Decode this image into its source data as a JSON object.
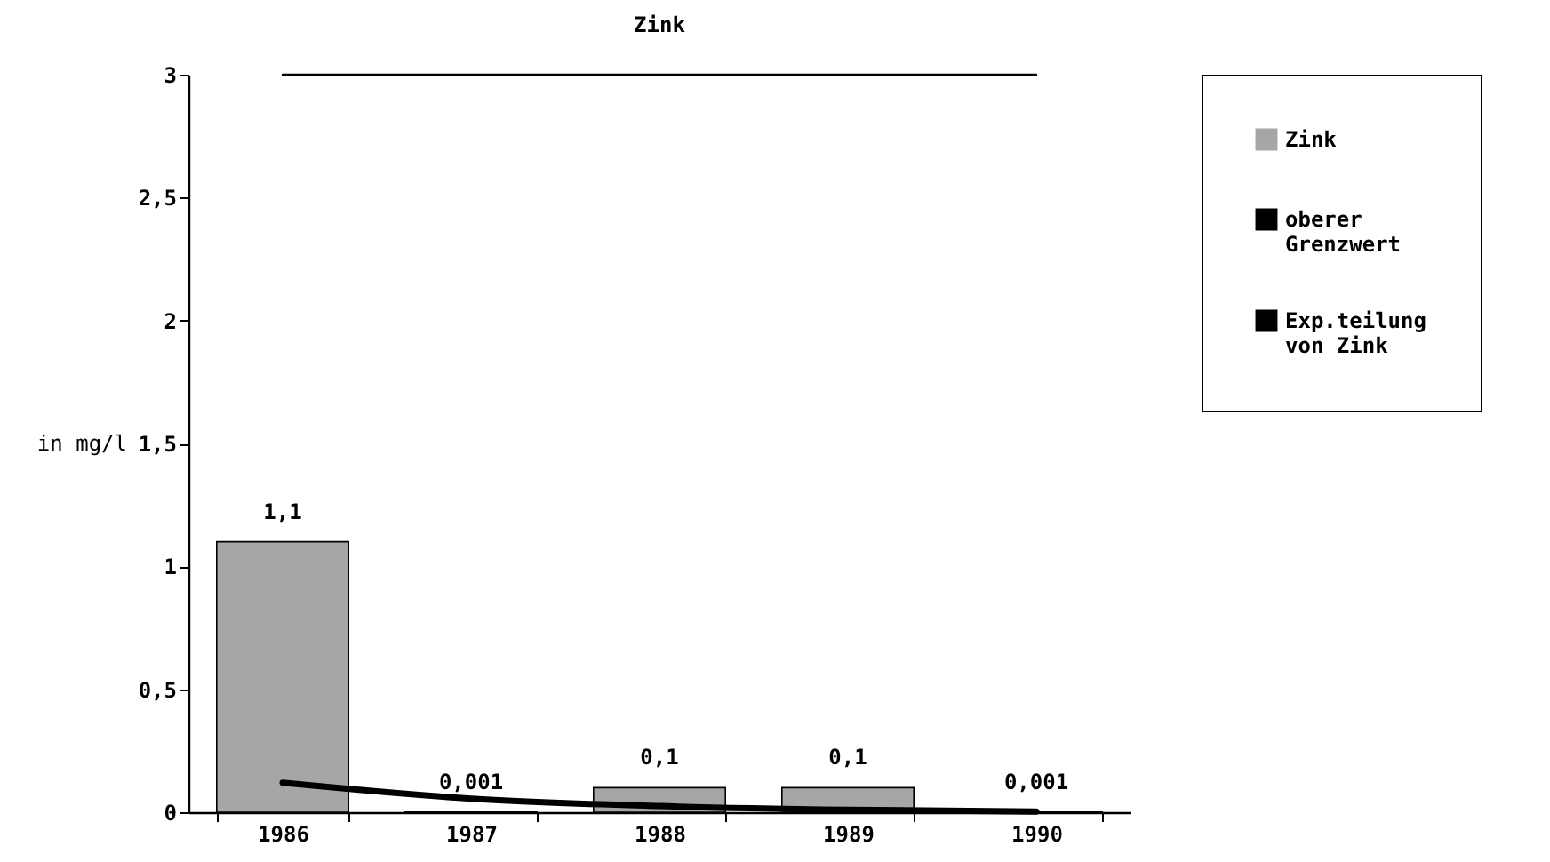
{
  "chart_data": {
    "type": "bar",
    "title": "Zink",
    "ylabel": "in mg/l",
    "categories": [
      "1986",
      "1987",
      "1988",
      "1989",
      "1990"
    ],
    "series": [
      {
        "name": "Zink",
        "color": "#a6a6a6",
        "values": [
          1.1,
          0.001,
          0.1,
          0.1,
          0.001
        ],
        "value_labels": [
          "1,1",
          "0,001",
          "0,1",
          "0,1",
          "0,001"
        ]
      },
      {
        "name": "oberer Grenzwert",
        "type": "line",
        "color": "#000000",
        "values": [
          3,
          3,
          3,
          3,
          3
        ]
      },
      {
        "name": "Exp.teilung von Zink",
        "type": "line",
        "color": "#000000",
        "values": [
          0.12,
          0.055,
          0.025,
          0.01,
          0.003
        ]
      }
    ],
    "ylim": [
      0,
      3
    ],
    "yticks": [
      0,
      {
        "value": 0.5,
        "label": "0,5"
      },
      1,
      {
        "value": 1.5,
        "label": "1,5"
      },
      2,
      {
        "value": 2.5,
        "label": "2,5"
      },
      3
    ],
    "grid": false,
    "legend": "right"
  }
}
